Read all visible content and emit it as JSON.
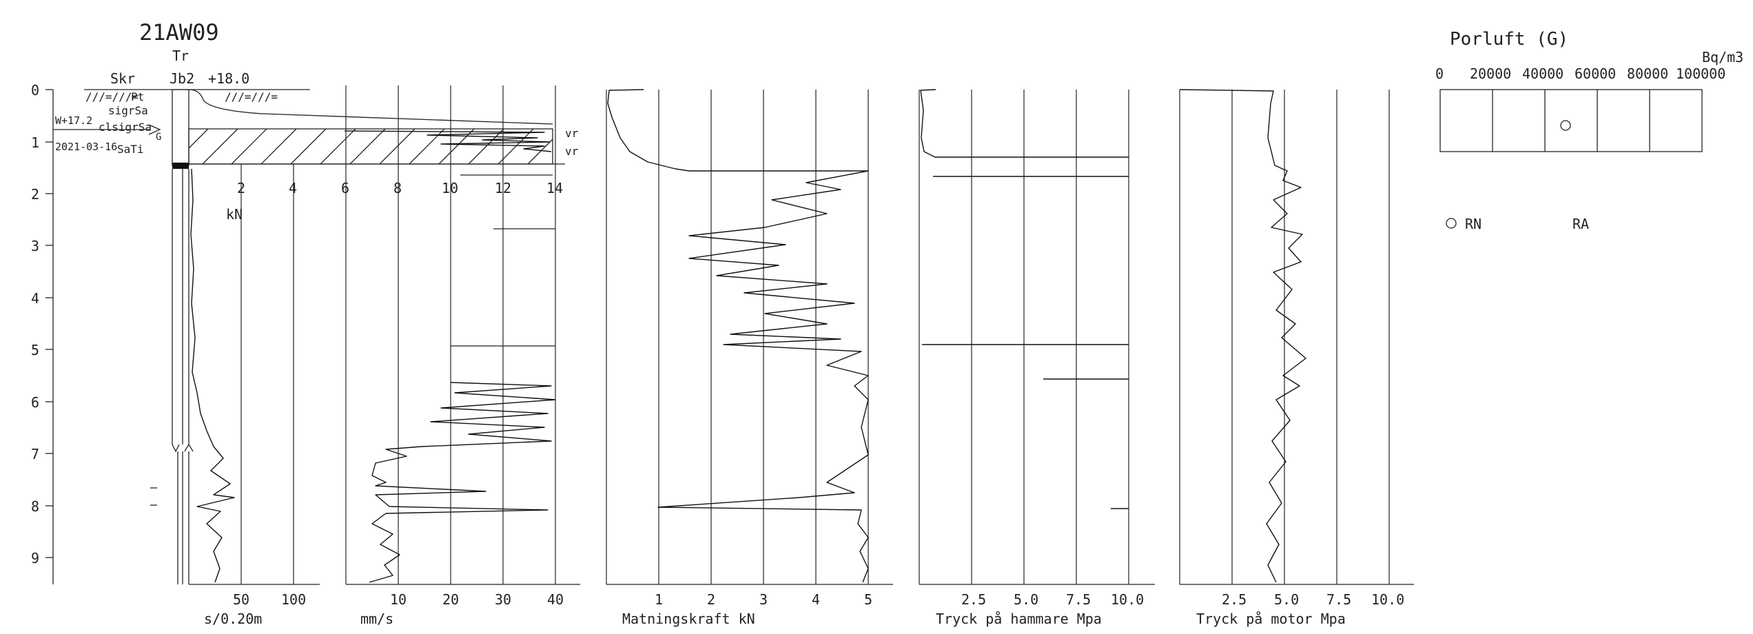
{
  "title": "21AW09",
  "header": {
    "tr": "Tr",
    "skr": "Skr",
    "jb": "Jb2",
    "elevation": "+18.0"
  },
  "depth_ticks": [
    "0",
    "1",
    "2",
    "3",
    "4",
    "5",
    "6",
    "7",
    "8",
    "9"
  ],
  "soil_layers": [
    "Pt",
    "sigrSa",
    "clsigrSa",
    "SaTi"
  ],
  "water": {
    "level": "W+17.2",
    "date": "2021-03-16",
    "marker": "G"
  },
  "vr_labels": [
    "vr",
    "vr"
  ],
  "kn_scale": {
    "ticks": [
      "2",
      "4",
      "6",
      "8",
      "10",
      "12",
      "14"
    ],
    "unit": "kN"
  },
  "panels": [
    {
      "id": "s020",
      "ticks": [
        "50",
        "100"
      ],
      "label": "s/0.20m"
    },
    {
      "id": "mms",
      "ticks": [
        "10",
        "20",
        "30",
        "40"
      ],
      "label": "mm/s"
    },
    {
      "id": "matning",
      "ticks": [
        "1",
        "2",
        "3",
        "4",
        "5"
      ],
      "label": "Matningskraft kN"
    },
    {
      "id": "hammare",
      "ticks": [
        "2.5",
        "5.0",
        "7.5",
        "10.0"
      ],
      "label": "Tryck på hammare Mpa"
    },
    {
      "id": "motor",
      "ticks": [
        "2.5",
        "5.0",
        "7.5",
        "10.0"
      ],
      "label": "Tryck på motor Mpa"
    }
  ],
  "porluft": {
    "title": "Porluft (G)",
    "unit": "Bq/m3",
    "ticks": [
      "0",
      "20000",
      "40000",
      "60000",
      "80000",
      "100000"
    ],
    "point": {
      "value": 40000,
      "series": "RN"
    },
    "legend": {
      "rn": "RN",
      "ra": "RA"
    }
  },
  "chart_data": [
    {
      "type": "line",
      "xlabel": "s/0.20m",
      "xlim": [
        0,
        150
      ],
      "series": [
        {
          "values": [
            [
              0,
              1.5
            ],
            [
              6,
              2
            ],
            [
              5,
              3
            ],
            [
              6,
              4
            ],
            [
              5,
              5
            ],
            [
              7,
              5.8
            ],
            [
              8,
              6.2
            ],
            [
              10,
              6.5
            ],
            [
              12,
              6.9
            ],
            [
              25,
              7.1
            ],
            [
              30,
              7.3
            ],
            [
              38,
              7.5
            ],
            [
              20,
              7.7
            ],
            [
              25,
              7.9
            ],
            [
              15,
              8.1
            ],
            [
              25,
              8.4
            ],
            [
              30,
              8.8
            ],
            [
              28,
              9.1
            ],
            [
              35,
              9.5
            ]
          ]
        }
      ]
    },
    {
      "type": "line",
      "xlabel": "mm/s",
      "xlim": [
        0,
        40
      ],
      "series": [
        {
          "values": [
            [
              18,
              5.6
            ],
            [
              40,
              5.7
            ],
            [
              25,
              5.9
            ],
            [
              40,
              6.0
            ],
            [
              22,
              6.2
            ],
            [
              38,
              6.4
            ],
            [
              30,
              6.6
            ],
            [
              35,
              6.8
            ],
            [
              12,
              6.9
            ],
            [
              10,
              7.1
            ],
            [
              6,
              7.3
            ],
            [
              5,
              7.6
            ],
            [
              27,
              7.7
            ],
            [
              8,
              7.8
            ],
            [
              6,
              8.0
            ],
            [
              10,
              8.2
            ],
            [
              8,
              8.6
            ],
            [
              9,
              9.0
            ],
            [
              7,
              9.3
            ],
            [
              4,
              9.5
            ]
          ]
        }
      ]
    },
    {
      "type": "line",
      "xlabel": "Matningskraft kN",
      "xlim": [
        0,
        5
      ],
      "series": [
        {
          "values": [
            [
              0.7,
              0
            ],
            [
              0.1,
              0.2
            ],
            [
              0.2,
              0.8
            ],
            [
              0.8,
              1.4
            ],
            [
              5,
              1.6
            ],
            [
              3.8,
              1.9
            ],
            [
              2.5,
              2.5
            ],
            [
              3.6,
              3
            ],
            [
              2.3,
              3.6
            ],
            [
              4.5,
              4
            ],
            [
              3.3,
              4.5
            ],
            [
              2.4,
              4.9
            ],
            [
              4.8,
              5.2
            ],
            [
              5,
              5.7
            ],
            [
              4.2,
              6
            ],
            [
              5,
              7
            ],
            [
              4,
              7.8
            ],
            [
              0,
              8
            ],
            [
              5,
              8.4
            ],
            [
              4.8,
              9
            ],
            [
              5,
              9.5
            ]
          ]
        }
      ]
    },
    {
      "type": "line",
      "xlabel": "Tryck på hammare Mpa",
      "xlim": [
        0,
        10
      ],
      "series": [
        {
          "values": [
            [
              0,
              0
            ],
            [
              0.2,
              0.5
            ],
            [
              0.3,
              1.2
            ],
            [
              10,
              1.3
            ],
            [
              0.3,
              1.7
            ],
            [
              10,
              1.7
            ],
            [
              0.3,
              4.9
            ],
            [
              10,
              4.9
            ],
            [
              6,
              5.6
            ],
            [
              10,
              5.6
            ],
            [
              0.3,
              7.5
            ],
            [
              9.5,
              8
            ],
            [
              0.4,
              9.5
            ]
          ]
        }
      ]
    },
    {
      "type": "line",
      "xlabel": "Tryck på motor Mpa",
      "xlim": [
        0,
        10
      ],
      "series": [
        {
          "values": [
            [
              0,
              0
            ],
            [
              4.2,
              0.3
            ],
            [
              3.8,
              1.2
            ],
            [
              5,
              1.8
            ],
            [
              4.5,
              2.5
            ],
            [
              5.5,
              3
            ],
            [
              4.8,
              4
            ],
            [
              5.2,
              5
            ],
            [
              4.6,
              6
            ],
            [
              5,
              7
            ],
            [
              4.3,
              8
            ],
            [
              4.9,
              9
            ],
            [
              4.5,
              9.5
            ]
          ]
        }
      ]
    }
  ]
}
